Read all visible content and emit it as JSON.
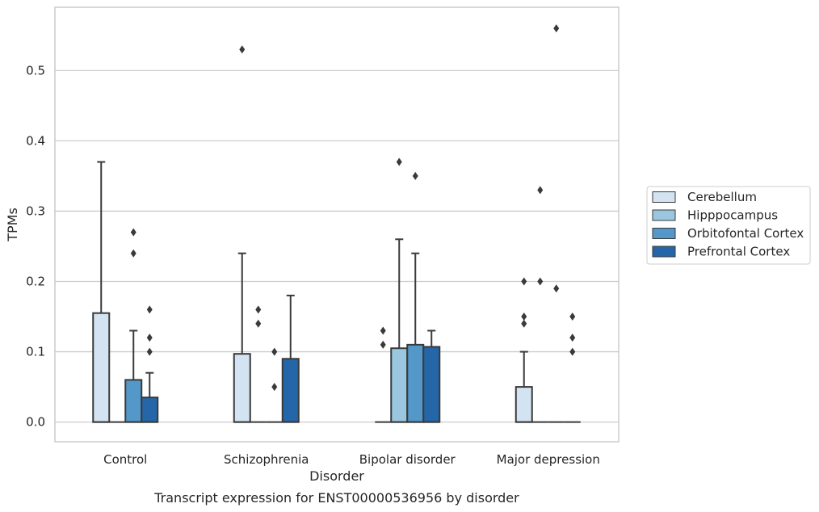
{
  "chart_data": {
    "type": "box",
    "caption": "Transcript expression for ENST00000536956 by disorder",
    "xlabel": "Disorder",
    "ylabel": "TPMs",
    "ylim": [
      -0.028,
      0.59
    ],
    "yticks": [
      0.0,
      0.1,
      0.2,
      0.3,
      0.4,
      0.5
    ],
    "ytick_labels": [
      "0.0",
      "0.1",
      "0.2",
      "0.3",
      "0.4",
      "0.5"
    ],
    "grid": "horizontal",
    "legend_position": "right",
    "categories": [
      "Control",
      "Schizophrenia",
      "Bipolar disorder",
      "Major depression"
    ],
    "series": [
      {
        "name": "Cerebellum",
        "color": "#d3e3f1",
        "boxes": [
          {
            "q1": 0.0,
            "median": 0.0,
            "q3": 0.155,
            "whisker_low": 0.0,
            "whisker_high": 0.37,
            "outliers": []
          },
          {
            "q1": 0.0,
            "median": 0.0,
            "q3": 0.097,
            "whisker_low": 0.0,
            "whisker_high": 0.24,
            "outliers": [
              0.53
            ]
          },
          {
            "q1": 0.0,
            "median": 0.0,
            "q3": 0.0,
            "whisker_low": 0.0,
            "whisker_high": 0.0,
            "outliers": [
              0.13,
              0.11
            ]
          },
          {
            "q1": 0.0,
            "median": 0.0,
            "q3": 0.05,
            "whisker_low": 0.0,
            "whisker_high": 0.1,
            "outliers": [
              0.2,
              0.15,
              0.14
            ]
          }
        ]
      },
      {
        "name": "Hipppocampus",
        "color": "#9ac6df",
        "boxes": [
          {
            "q1": 0.0,
            "median": 0.0,
            "q3": 0.0,
            "whisker_low": 0.0,
            "whisker_high": 0.0,
            "outliers": []
          },
          {
            "q1": 0.0,
            "median": 0.0,
            "q3": 0.0,
            "whisker_low": 0.0,
            "whisker_high": 0.0,
            "outliers": [
              0.16,
              0.14
            ]
          },
          {
            "q1": 0.0,
            "median": 0.0,
            "q3": 0.105,
            "whisker_low": 0.0,
            "whisker_high": 0.26,
            "outliers": [
              0.37
            ]
          },
          {
            "q1": 0.0,
            "median": 0.0,
            "q3": 0.0,
            "whisker_low": 0.0,
            "whisker_high": 0.0,
            "outliers": [
              0.33,
              0.2
            ]
          }
        ]
      },
      {
        "name": "Orbitofontal Cortex",
        "color": "#5398c8",
        "boxes": [
          {
            "q1": 0.0,
            "median": 0.0,
            "q3": 0.06,
            "whisker_low": 0.0,
            "whisker_high": 0.13,
            "outliers": [
              0.27,
              0.24
            ]
          },
          {
            "q1": 0.0,
            "median": 0.0,
            "q3": 0.0,
            "whisker_low": 0.0,
            "whisker_high": 0.0,
            "outliers": [
              0.1,
              0.05
            ]
          },
          {
            "q1": 0.0,
            "median": 0.0,
            "q3": 0.11,
            "whisker_low": 0.0,
            "whisker_high": 0.24,
            "outliers": [
              0.35
            ]
          },
          {
            "q1": 0.0,
            "median": 0.0,
            "q3": 0.0,
            "whisker_low": 0.0,
            "whisker_high": 0.0,
            "outliers": [
              0.56,
              0.19
            ]
          }
        ]
      },
      {
        "name": "Prefrontal Cortex",
        "color": "#2566a8",
        "boxes": [
          {
            "q1": 0.0,
            "median": 0.0,
            "q3": 0.035,
            "whisker_low": 0.0,
            "whisker_high": 0.07,
            "outliers": [
              0.16,
              0.12,
              0.1
            ]
          },
          {
            "q1": 0.0,
            "median": 0.0,
            "q3": 0.09,
            "whisker_low": 0.0,
            "whisker_high": 0.18,
            "outliers": []
          },
          {
            "q1": 0.0,
            "median": 0.0,
            "q3": 0.107,
            "whisker_low": 0.0,
            "whisker_high": 0.13,
            "outliers": []
          },
          {
            "q1": 0.0,
            "median": 0.0,
            "q3": 0.0,
            "whisker_low": 0.0,
            "whisker_high": 0.0,
            "outliers": [
              0.15,
              0.12,
              0.1
            ]
          }
        ]
      }
    ]
  },
  "colors": {
    "grid": "#cccccc",
    "frame": "#cccccc",
    "box_edge": "#3a3a3a",
    "text": "#262626"
  }
}
